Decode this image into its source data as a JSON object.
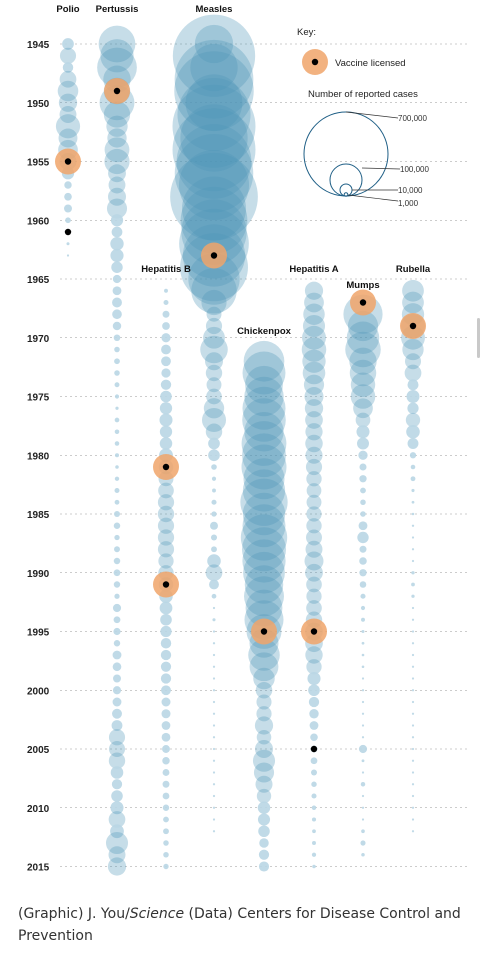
{
  "chart_data": {
    "type": "scatter",
    "title": "",
    "xlabel": "",
    "ylabel": "",
    "year_range": [
      1945,
      2015
    ],
    "year_ticks": [
      1945,
      1950,
      1955,
      1960,
      1965,
      1970,
      1975,
      1980,
      1985,
      1990,
      1995,
      2000,
      2005,
      2010,
      2015
    ],
    "colors": {
      "bubble": "#4f96b8",
      "bubble_light": "#b9d6e4",
      "licensed_halo": "#f0a56a",
      "dot": "#000000"
    },
    "key": {
      "title": "Key:",
      "licensed_label": "Vaccine licensed",
      "size_title": "Number of reported cases",
      "size_values": [
        "700,000",
        "100,000",
        "10,000",
        "1,000"
      ]
    },
    "series": [
      {
        "name": "Polio",
        "start": 1945,
        "licensed": [
          1955
        ],
        "black": [
          1961
        ],
        "end": 1963,
        "cases": [
          13624,
          25698,
          10827,
          27726,
          42033,
          33300,
          28386,
          57879,
          35592,
          38476,
          28985,
          15140,
          5485,
          5787,
          6289,
          3190,
          1312,
          910,
          449
        ]
      },
      {
        "name": "Pertussis",
        "start": 1945,
        "licensed": [
          1949
        ],
        "black": [],
        "cases": [
          133792,
          109873,
          156517,
          74715,
          69479,
          120718,
          68687,
          45030,
          37129,
          60886,
          62786,
          31732,
          28295,
          32148,
          40005,
          14809,
          11468,
          17749,
          17135,
          13005,
          6799,
          7717,
          9718,
          9278,
          7050,
          4249,
          3036,
          3287,
          3036,
          2402,
          1738,
          1010,
          2177,
          2063,
          2063,
          1623,
          1248,
          1895,
          2463,
          2276,
          3589,
          4195,
          2823,
          3450,
          4157,
          4570,
          4083,
          2719,
          6586,
          4617,
          5137,
          4083,
          7796,
          7405,
          6279,
          6564,
          7867,
          9771,
          11647,
          25827,
          25616,
          26611,
          15632,
          10454,
          13278,
          16858,
          27550,
          18719,
          48277,
          28639,
          32971
        ]
      },
      {
        "name": "Measles",
        "start": 1945,
        "licensed": [
          1963
        ],
        "black": [],
        "cases": [
          146013,
          672181,
          222375,
          615104,
          626195,
          319124,
          530118,
          683077,
          449146,
          682720,
          555156,
          611936,
          486799,
          763094,
          406162,
          441703,
          423919,
          481530,
          385156,
          458083,
          261904,
          204136,
          62705,
          22231,
          25826,
          47351,
          75290,
          32275,
          26690,
          22094,
          24374,
          41126,
          57345,
          26871,
          13597,
          13506,
          3124,
          1714,
          1497,
          2587,
          2822,
          6282,
          3655,
          3396,
          18193,
          27786,
          9643,
          2237,
          312,
          963,
          309,
          508,
          138,
          100,
          100,
          86,
          63,
          116,
          56,
          44,
          55,
          66,
          43,
          55,
          71,
          140,
          220,
          187
        ]
      },
      {
        "name": "Hepatitis B",
        "start": 1966,
        "licensed": [
          1981,
          1991
        ],
        "black": [],
        "cases": [
          1497,
          2458,
          4829,
          5909,
          8310,
          9556,
          9402,
          8451,
          10631,
          13121,
          14973,
          16831,
          15016,
          15452,
          19015,
          21152,
          22177,
          24318,
          26115,
          26611,
          25916,
          26107,
          25916,
          23177,
          23419,
          21102,
          18003,
          16126,
          13361,
          12517,
          10805,
          10637,
          10258,
          10416,
          9595,
          8036,
          8064,
          7526,
          7526,
          6212,
          5494,
          4713,
          4758,
          4519,
          4033,
          3374,
          3405,
          3020,
          3020,
          2895,
          2791
        ]
      },
      {
        "name": "Chickenpox",
        "start": 1972,
        "licensed": [
          1995
        ],
        "black": [],
        "cases": [
          164114,
          182927,
          141495,
          154248,
          183990,
          188396,
          154089,
          199081,
          190894,
          200766,
          167423,
          177462,
          221983,
          178162,
          183243,
          213196,
          192857,
          185441,
          173099,
          147076,
          158364,
          134722,
          151219,
          120624,
          83511,
          98727,
          82455,
          46016,
          27382,
          22536,
          22841,
          32931,
          20948,
          32242,
          48445,
          40146,
          28815,
          20480,
          15427,
          14513,
          13184,
          9002,
          10342,
          10160,
          8302
        ]
      },
      {
        "name": "Hepatitis A",
        "start": 1966,
        "licensed": [
          1995
        ],
        "black": [
          2005
        ],
        "cases": [
          32859,
          38909,
          45893,
          48416,
          56797,
          59606,
          54074,
          50749,
          40358,
          35855,
          33288,
          31153,
          29500,
          30407,
          29087,
          25802,
          23403,
          21532,
          22040,
          23210,
          23430,
          25280,
          28507,
          35821,
          31441,
          24378,
          23112,
          24238,
          26796,
          31582,
          31032,
          30021,
          23229,
          17047,
          13397,
          10609,
          8795,
          7653,
          5683,
          4488,
          4488,
          3579,
          2979,
          2585,
          1987,
          1670,
          1398,
          1562,
          1781,
          1239
        ]
      },
      {
        "name": "Mumps",
        "start": 1968,
        "licensed": [
          1967
        ],
        "black": [],
        "cases": [
          152209,
          90918,
          104953,
          124939,
          74215,
          69612,
          59128,
          59647,
          38492,
          21436,
          16817,
          14225,
          8576,
          4941,
          5270,
          3355,
          3021,
          2982,
          7790,
          12848,
          4866,
          5712,
          5292,
          4264,
          2572,
          1692,
          1537,
          906,
          751,
          683,
          666,
          387,
          352,
          266,
          270,
          231,
          258,
          6584,
          800,
          454,
          1991,
          404,
          370,
          229,
          1329,
          2612,
          1223
        ]
      },
      {
        "name": "Rubella",
        "start": 1966,
        "licensed": [
          1969
        ],
        "black": [],
        "cases": [
          46975,
          46888,
          49371,
          57686,
          56552,
          45086,
          25507,
          27804,
          11917,
          16652,
          12491,
          20395,
          18269,
          11795,
          3904,
          2077,
          2325,
          970,
          752,
          630,
          551,
          306,
          225,
          396,
          1125,
          1401,
          1073,
          160,
          192,
          128,
          238,
          181,
          364,
          345,
          267,
          176,
          23,
          18,
          7,
          10,
          11,
          11,
          12,
          16,
          5,
          3,
          9
        ]
      }
    ]
  },
  "credit": {
    "prefix": "(Graphic) J. You/",
    "journal": "Science",
    "suffix": " (Data) Centers for Disease Control and Prevention"
  }
}
